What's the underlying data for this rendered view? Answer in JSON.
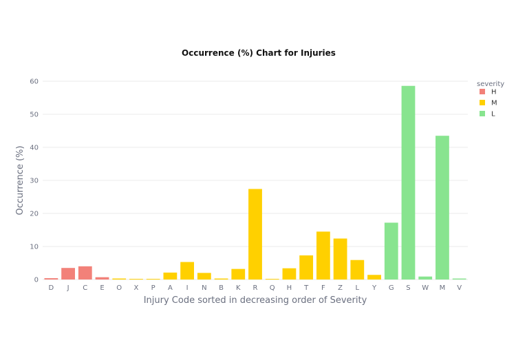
{
  "chart_data": {
    "type": "bar",
    "title": "Occurrence (%) Chart for Injuries",
    "xlabel": "Injury Code sorted in decreasing order of Severity",
    "ylabel": "Occurrence (%)",
    "ylim": [
      0,
      60
    ],
    "yticks": [
      0,
      10,
      20,
      30,
      40,
      50,
      60
    ],
    "grid": true,
    "legend": {
      "title": "severity",
      "placement": "top-right",
      "entries": [
        {
          "name": "H",
          "color": "#f28179"
        },
        {
          "name": "M",
          "color": "#ffd000"
        },
        {
          "name": "L",
          "color": "#88e48f"
        }
      ]
    },
    "categories": [
      "D",
      "J",
      "C",
      "E",
      "O",
      "X",
      "P",
      "A",
      "I",
      "N",
      "B",
      "K",
      "R",
      "Q",
      "H",
      "T",
      "F",
      "Z",
      "L",
      "Y",
      "G",
      "S",
      "W",
      "M",
      "V"
    ],
    "values": [
      0.4,
      3.5,
      4.0,
      0.7,
      0.3,
      0.2,
      0.2,
      2.1,
      5.3,
      2.0,
      0.3,
      3.2,
      27.4,
      0.2,
      3.4,
      7.3,
      14.5,
      12.4,
      5.9,
      1.4,
      17.2,
      58.6,
      0.9,
      43.5,
      0.3
    ],
    "severity": [
      "H",
      "H",
      "H",
      "H",
      "M",
      "M",
      "M",
      "M",
      "M",
      "M",
      "M",
      "M",
      "M",
      "M",
      "M",
      "M",
      "M",
      "M",
      "M",
      "M",
      "L",
      "L",
      "L",
      "L",
      "L"
    ]
  }
}
